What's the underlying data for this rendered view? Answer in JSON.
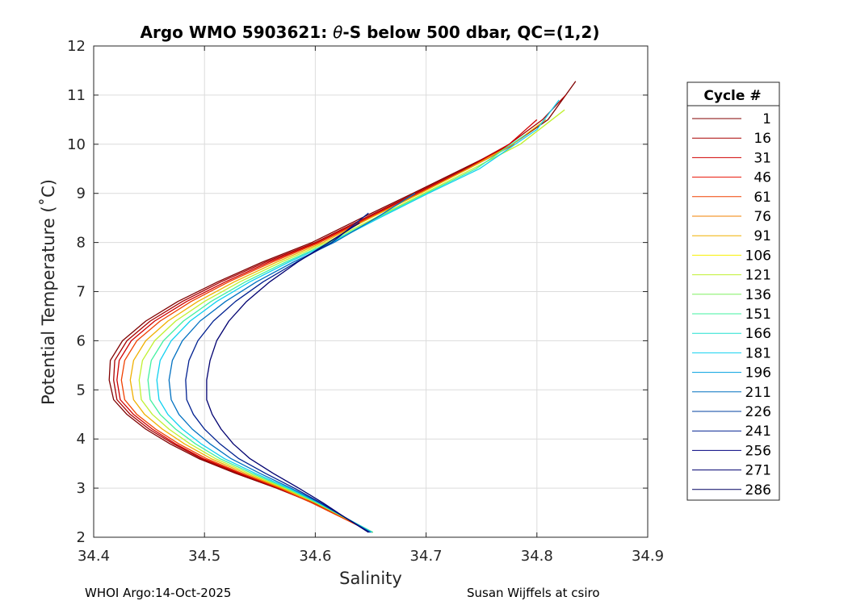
{
  "chart_data": {
    "type": "line",
    "title_prefix": "Argo WMO 5903621: ",
    "title_theta": "θ",
    "title_suffix": "-S below 500 dbar,  QC=(1,2)",
    "xlabel": "Salinity",
    "ylabel": "Potential Temperature (˚C)",
    "xlim": [
      34.4,
      34.9
    ],
    "ylim": [
      2,
      12
    ],
    "xticks": [
      34.4,
      34.5,
      34.6,
      34.7,
      34.8,
      34.9
    ],
    "xtick_labels": [
      "34.4",
      "34.5",
      "34.6",
      "34.7",
      "34.8",
      "34.9"
    ],
    "yticks": [
      2,
      3,
      4,
      5,
      6,
      7,
      8,
      9,
      10,
      11,
      12
    ],
    "ytick_labels": [
      "2",
      "3",
      "4",
      "5",
      "6",
      "7",
      "8",
      "9",
      "10",
      "11",
      "12"
    ],
    "grid": true,
    "legend_position": "right",
    "legend_title": "Cycle #",
    "legend": [
      {
        "cycle": "1",
        "color": "#800000"
      },
      {
        "cycle": "16",
        "color": "#a80000"
      },
      {
        "cycle": "31",
        "color": "#d00000"
      },
      {
        "cycle": "46",
        "color": "#e81000"
      },
      {
        "cycle": "61",
        "color": "#f04000"
      },
      {
        "cycle": "76",
        "color": "#f08000"
      },
      {
        "cycle": "91",
        "color": "#f0b000"
      },
      {
        "cycle": "106",
        "color": "#f8f000"
      },
      {
        "cycle": "121",
        "color": "#c0f030"
      },
      {
        "cycle": "136",
        "color": "#80f060"
      },
      {
        "cycle": "151",
        "color": "#40f0a0"
      },
      {
        "cycle": "166",
        "color": "#20e0d0"
      },
      {
        "cycle": "181",
        "color": "#10d0f0"
      },
      {
        "cycle": "196",
        "color": "#00a0e0"
      },
      {
        "cycle": "211",
        "color": "#0070c0"
      },
      {
        "cycle": "226",
        "color": "#0040a0"
      },
      {
        "cycle": "241",
        "color": "#002090"
      },
      {
        "cycle": "256",
        "color": "#000080"
      },
      {
        "cycle": "271",
        "color": "#000070"
      },
      {
        "cycle": "286",
        "color": "#000060"
      }
    ],
    "series": [
      {
        "name": "cycle 1",
        "color": "#800000",
        "salinity": [
          34.652,
          34.625,
          34.598,
          34.565,
          34.528,
          34.495,
          34.469,
          34.447,
          34.43,
          34.418,
          34.414,
          34.415,
          34.426,
          34.447,
          34.476,
          34.512,
          34.552,
          34.597,
          34.642,
          34.688,
          34.733,
          34.778,
          34.81,
          34.835
        ],
        "theta": [
          2.1,
          2.4,
          2.7,
          3.0,
          3.3,
          3.6,
          3.9,
          4.2,
          4.5,
          4.8,
          5.2,
          5.6,
          6.0,
          6.4,
          6.8,
          7.2,
          7.6,
          8.0,
          8.5,
          9.0,
          9.5,
          10.0,
          10.5,
          11.28
        ]
      },
      {
        "name": "cycle 16",
        "color": "#a80000",
        "salinity": [
          34.652,
          34.625,
          34.598,
          34.566,
          34.53,
          34.497,
          34.472,
          34.45,
          34.433,
          34.421,
          34.418,
          34.419,
          34.43,
          34.451,
          34.48,
          34.515,
          34.555,
          34.6,
          34.645,
          34.69,
          34.735,
          34.775,
          34.805,
          34.826
        ],
        "theta": [
          2.1,
          2.4,
          2.7,
          3.0,
          3.3,
          3.6,
          3.9,
          4.2,
          4.5,
          4.8,
          5.2,
          5.6,
          6.0,
          6.4,
          6.8,
          7.2,
          7.6,
          8.0,
          8.5,
          9.0,
          9.5,
          10.0,
          10.5,
          11.0
        ]
      },
      {
        "name": "cycle 31",
        "color": "#d00000",
        "salinity": [
          34.651,
          34.624,
          34.597,
          34.567,
          34.532,
          34.499,
          34.474,
          34.453,
          34.436,
          34.424,
          34.421,
          34.423,
          34.434,
          34.455,
          34.484,
          34.519,
          34.558,
          34.602,
          34.647,
          34.692,
          34.737,
          34.775,
          34.8
        ],
        "theta": [
          2.1,
          2.4,
          2.7,
          3.0,
          3.3,
          3.6,
          3.9,
          4.2,
          4.5,
          4.8,
          5.2,
          5.6,
          6.0,
          6.4,
          6.8,
          7.2,
          7.6,
          8.0,
          8.5,
          9.0,
          9.5,
          10.0,
          10.5
        ]
      },
      {
        "name": "cycle 61",
        "color": "#f04000",
        "salinity": [
          34.651,
          34.624,
          34.597,
          34.568,
          34.534,
          34.502,
          34.477,
          34.456,
          34.439,
          34.428,
          34.425,
          34.428,
          34.439,
          34.46,
          34.488,
          34.522,
          34.561,
          34.604,
          34.649,
          34.694,
          34.738,
          34.78
        ],
        "theta": [
          2.1,
          2.4,
          2.7,
          3.0,
          3.3,
          3.6,
          3.9,
          4.2,
          4.5,
          4.8,
          5.2,
          5.6,
          6.0,
          6.4,
          6.8,
          7.2,
          7.6,
          8.0,
          8.5,
          9.0,
          9.5,
          10.0
        ]
      },
      {
        "name": "cycle 91",
        "color": "#f0b000",
        "salinity": [
          34.652,
          34.626,
          34.6,
          34.57,
          34.537,
          34.506,
          34.482,
          34.462,
          34.446,
          34.436,
          34.433,
          34.436,
          34.447,
          34.467,
          34.494,
          34.527,
          34.565,
          34.607,
          34.65,
          34.695,
          34.738,
          34.778,
          34.808
        ],
        "theta": [
          2.1,
          2.4,
          2.7,
          3.0,
          3.3,
          3.6,
          3.9,
          4.2,
          4.5,
          4.8,
          5.2,
          5.6,
          6.0,
          6.4,
          6.8,
          7.2,
          7.6,
          8.0,
          8.5,
          9.0,
          9.5,
          10.0,
          10.5
        ]
      },
      {
        "name": "cycle 121",
        "color": "#c0f030",
        "salinity": [
          34.652,
          34.626,
          34.601,
          34.572,
          34.54,
          34.51,
          34.487,
          34.468,
          34.453,
          34.443,
          34.441,
          34.444,
          34.455,
          34.474,
          34.5,
          34.532,
          34.569,
          34.61,
          34.654,
          34.698,
          34.742,
          34.785,
          34.825
        ],
        "theta": [
          2.1,
          2.4,
          2.7,
          3.0,
          3.3,
          3.6,
          3.9,
          4.2,
          4.5,
          4.8,
          5.2,
          5.6,
          6.0,
          6.4,
          6.8,
          7.2,
          7.6,
          8.0,
          8.5,
          9.0,
          9.5,
          10.0,
          10.7
        ]
      },
      {
        "name": "cycle 151",
        "color": "#40f0a0",
        "salinity": [
          34.652,
          34.627,
          34.602,
          34.574,
          34.543,
          34.514,
          34.492,
          34.474,
          34.46,
          34.451,
          34.449,
          34.452,
          34.463,
          34.481,
          34.506,
          34.537,
          34.573,
          34.613,
          34.656,
          34.7,
          34.745,
          34.79
        ],
        "theta": [
          2.1,
          2.4,
          2.7,
          3.0,
          3.3,
          3.6,
          3.9,
          4.2,
          4.5,
          4.8,
          5.2,
          5.6,
          6.0,
          6.4,
          6.8,
          7.2,
          7.6,
          8.0,
          8.5,
          9.0,
          9.5,
          10.2
        ]
      },
      {
        "name": "cycle 181",
        "color": "#10d0f0",
        "salinity": [
          34.651,
          34.627,
          34.603,
          34.576,
          34.546,
          34.518,
          34.497,
          34.48,
          34.467,
          34.459,
          34.457,
          34.46,
          34.47,
          34.487,
          34.511,
          34.541,
          34.576,
          34.615,
          34.658,
          34.702,
          34.748,
          34.8,
          34.82
        ],
        "theta": [
          2.1,
          2.4,
          2.7,
          3.0,
          3.3,
          3.6,
          3.9,
          4.2,
          4.5,
          4.8,
          5.2,
          5.6,
          6.0,
          6.4,
          6.8,
          7.2,
          7.6,
          8.0,
          8.5,
          9.0,
          9.5,
          10.3,
          10.9
        ]
      },
      {
        "name": "cycle 211",
        "color": "#0070c0",
        "salinity": [
          34.65,
          34.627,
          34.604,
          34.578,
          34.55,
          34.524,
          34.505,
          34.489,
          34.477,
          34.47,
          34.468,
          34.471,
          34.48,
          34.496,
          34.519,
          34.547,
          34.58,
          34.617,
          34.655,
          34.69
        ],
        "theta": [
          2.1,
          2.4,
          2.7,
          3.0,
          3.3,
          3.6,
          3.9,
          4.2,
          4.5,
          4.8,
          5.2,
          5.6,
          6.0,
          6.4,
          6.8,
          7.2,
          7.6,
          8.0,
          8.5,
          9.0
        ]
      },
      {
        "name": "cycle 241",
        "color": "#002090",
        "salinity": [
          34.649,
          34.627,
          34.605,
          34.581,
          34.555,
          34.531,
          34.514,
          34.5,
          34.49,
          34.484,
          34.483,
          34.486,
          34.494,
          34.508,
          34.528,
          34.553,
          34.583,
          34.615,
          34.648
        ],
        "theta": [
          2.1,
          2.4,
          2.7,
          3.0,
          3.3,
          3.6,
          3.9,
          4.2,
          4.5,
          4.8,
          5.2,
          5.6,
          6.0,
          6.4,
          6.8,
          7.2,
          7.6,
          8.0,
          8.6
        ]
      },
      {
        "name": "cycle 271",
        "color": "#000070",
        "salinity": [
          34.648,
          34.627,
          34.607,
          34.585,
          34.562,
          34.541,
          34.526,
          34.515,
          34.507,
          34.502,
          34.502,
          34.505,
          34.511,
          34.522,
          34.538,
          34.559,
          34.584,
          34.612,
          34.64
        ],
        "theta": [
          2.1,
          2.4,
          2.7,
          3.0,
          3.3,
          3.6,
          3.9,
          4.2,
          4.5,
          4.8,
          5.2,
          5.6,
          6.0,
          6.4,
          6.8,
          7.2,
          7.6,
          8.0,
          8.4
        ]
      }
    ],
    "footer_left": "WHOI Argo:14-Oct-2025",
    "footer_right": "Susan Wijffels at csiro"
  }
}
